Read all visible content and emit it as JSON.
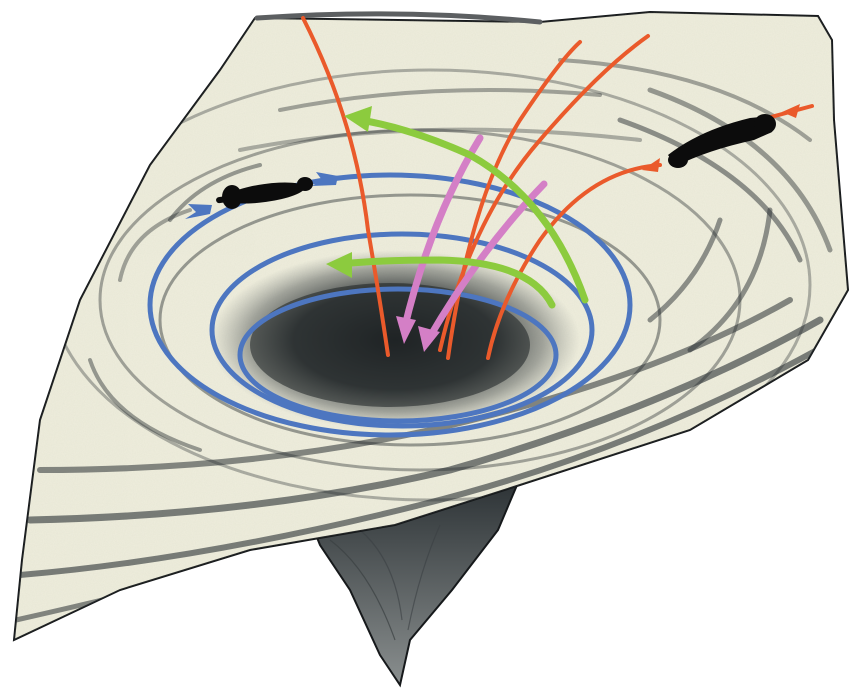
{
  "figure": {
    "kind": "hand-drawn diagram",
    "colors": {
      "paper": "#efeedd",
      "pencil": "#2a3033",
      "outline": "#16191b",
      "top_edge": "#5c5f61",
      "orbit_blue": "#4d76c0",
      "radial_red": "#ea5a2b",
      "arrow_green": "#8ccb3e",
      "arrow_pink": "#d47fc6",
      "figure_black": "#0c0c0c"
    },
    "elements": {
      "orbit_loops": 3,
      "radial_trajectories": 4,
      "green_arrows": 2,
      "pink_arrows": 2,
      "silhouette_figures": 2
    },
    "icons": [
      "arrowhead-icon",
      "silhouette-figure-icon"
    ]
  }
}
